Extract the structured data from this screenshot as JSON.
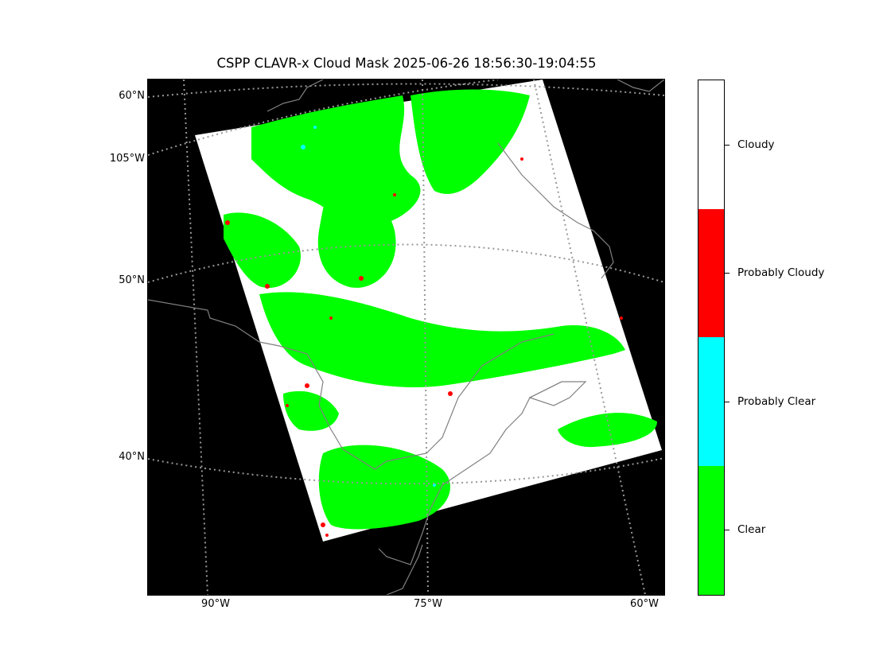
{
  "title": "CSPP CLAVR-x Cloud Mask 2025-06-26 18:56:30-19:04:55",
  "lat_labels": [
    "60°N",
    "105°W",
    "50°N",
    "40°N"
  ],
  "lon_labels": [
    "90°W",
    "75°W",
    "60°W"
  ],
  "colorbar": {
    "categories": [
      {
        "label": "Cloudy",
        "color": "#ffffff"
      },
      {
        "label": "Probably Cloudy",
        "color": "#ff0000"
      },
      {
        "label": "Probably Clear",
        "color": "#00ffff"
      },
      {
        "label": "Clear",
        "color": "#00ff00"
      }
    ]
  },
  "colors": {
    "background": "#000000",
    "gridline": "#999999",
    "coastline": "#808080"
  }
}
